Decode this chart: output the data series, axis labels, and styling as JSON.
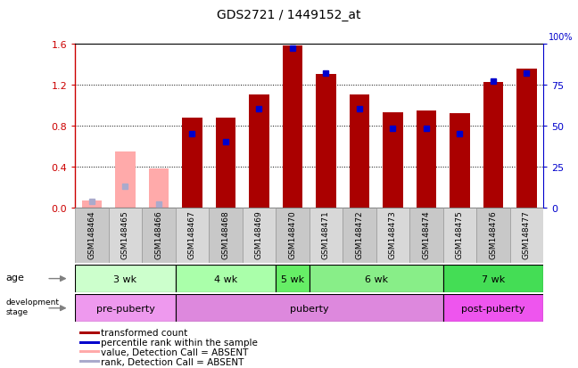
{
  "title": "GDS2721 / 1449152_at",
  "samples": [
    "GSM148464",
    "GSM148465",
    "GSM148466",
    "GSM148467",
    "GSM148468",
    "GSM148469",
    "GSM148470",
    "GSM148471",
    "GSM148472",
    "GSM148473",
    "GSM148474",
    "GSM148475",
    "GSM148476",
    "GSM148477"
  ],
  "transformed_count": [
    0.07,
    0.55,
    0.38,
    0.88,
    0.88,
    1.1,
    1.58,
    1.3,
    1.1,
    0.93,
    0.95,
    0.92,
    1.22,
    1.35
  ],
  "percentile_rank": [
    0.04,
    0.13,
    0.02,
    0.45,
    0.4,
    0.6,
    0.97,
    0.82,
    0.6,
    0.48,
    0.48,
    0.45,
    0.77,
    0.82
  ],
  "absent": [
    true,
    true,
    true,
    false,
    false,
    false,
    false,
    false,
    false,
    false,
    false,
    false,
    false,
    false
  ],
  "bar_color_present": "#aa0000",
  "bar_color_absent": "#ffaaaa",
  "rank_color_present": "#0000cc",
  "rank_color_absent": "#aaaacc",
  "ylim_left": [
    0,
    1.6
  ],
  "ylim_right": [
    0,
    100
  ],
  "yticks_left": [
    0.0,
    0.4,
    0.8,
    1.2,
    1.6
  ],
  "yticks_right": [
    0,
    25,
    50,
    75,
    100
  ],
  "age_groups": [
    {
      "label": "3 wk",
      "start": 0,
      "end": 3,
      "color": "#ccffcc"
    },
    {
      "label": "4 wk",
      "start": 3,
      "end": 6,
      "color": "#aaffaa"
    },
    {
      "label": "5 wk",
      "start": 6,
      "end": 7,
      "color": "#66ee66"
    },
    {
      "label": "6 wk",
      "start": 7,
      "end": 11,
      "color": "#88ee88"
    },
    {
      "label": "7 wk",
      "start": 11,
      "end": 14,
      "color": "#44dd55"
    }
  ],
  "dev_groups": [
    {
      "label": "pre-puberty",
      "start": 0,
      "end": 3,
      "color": "#ee99ee"
    },
    {
      "label": "puberty",
      "start": 3,
      "end": 11,
      "color": "#dd88dd"
    },
    {
      "label": "post-puberty",
      "start": 11,
      "end": 14,
      "color": "#ee66ee"
    }
  ],
  "legend_items": [
    {
      "label": "transformed count",
      "color": "#aa0000"
    },
    {
      "label": "percentile rank within the sample",
      "color": "#0000cc"
    },
    {
      "label": "value, Detection Call = ABSENT",
      "color": "#ffaaaa"
    },
    {
      "label": "rank, Detection Call = ABSENT",
      "color": "#aaaacc"
    }
  ]
}
